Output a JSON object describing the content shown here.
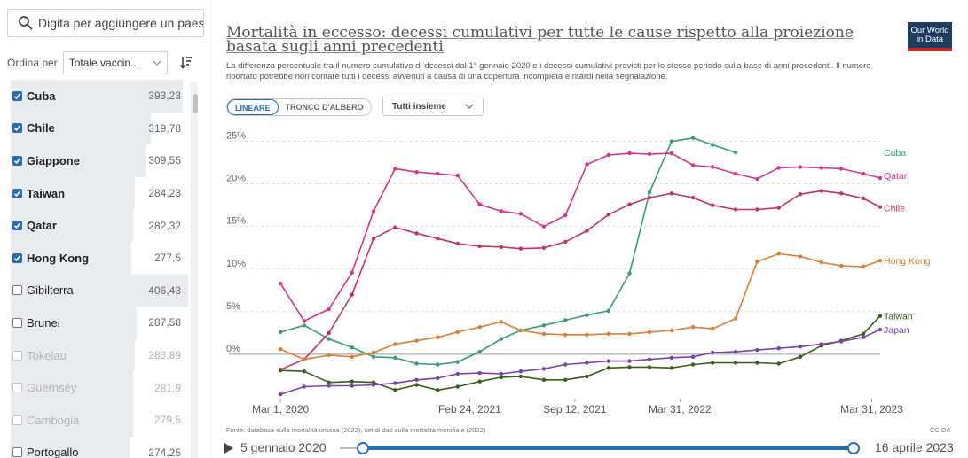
{
  "sidebar": {
    "search_placeholder": "Digita per aggiungere un paese",
    "sort_label": "Ordina per",
    "sort_value": "Totale vaccin...",
    "entities": [
      {
        "name": "Cuba",
        "value": "393,23",
        "checked": true,
        "muted": false,
        "fraction": 0.97
      },
      {
        "name": "Chile",
        "value": "319,78",
        "checked": true,
        "muted": false,
        "fraction": 0.79
      },
      {
        "name": "Giappone",
        "value": "309,55",
        "checked": true,
        "muted": false,
        "fraction": 0.76
      },
      {
        "name": "Taiwan",
        "value": "284,23",
        "checked": true,
        "muted": false,
        "fraction": 0.7
      },
      {
        "name": "Qatar",
        "value": "282,32",
        "checked": true,
        "muted": false,
        "fraction": 0.69
      },
      {
        "name": "Hong Kong",
        "value": "277,5",
        "checked": true,
        "muted": false,
        "fraction": 0.68
      },
      {
        "name": "Gibilterra",
        "value": "406,43",
        "checked": false,
        "muted": false,
        "fraction": 1.0
      },
      {
        "name": "Brunei",
        "value": "287,58",
        "checked": false,
        "muted": false,
        "fraction": 0.71
      },
      {
        "name": "Tokelau",
        "value": "283,89",
        "checked": false,
        "muted": true,
        "fraction": 0.7
      },
      {
        "name": "Guernsey",
        "value": "281,9",
        "checked": false,
        "muted": true,
        "fraction": 0.69
      },
      {
        "name": "Cambogia",
        "value": "279,5",
        "checked": false,
        "muted": true,
        "fraction": 0.69
      },
      {
        "name": "Portogallo",
        "value": "274,25",
        "checked": false,
        "muted": false,
        "fraction": 0.67
      }
    ]
  },
  "header": {
    "title": "Mortalità in eccesso: decessi cumulativi per tutte le cause rispetto alla proiezione basata sugli anni precedenti",
    "subtitle": "La differenza percentuale tra il numero cumulativo di decessi dal 1° gennaio 2020 e i decessi cumulativi previsti per lo stesso periodo sulla base di anni precedenti. Il numero riportato potrebbe non contare tutti i decessi avvenuti a causa di una copertura incompleta e ritardi nella segnalazione.",
    "logo_line1": "Our World",
    "logo_line2": "in Data"
  },
  "controls": {
    "scale_linear": "LINEARE",
    "scale_log": "TRONCO D'ALBERO",
    "group_label": "Tutti insieme"
  },
  "footer": {
    "sources": "Fonte: database sulla mortalità umana (2022), set di dati sulla mortalità mondiale (2022)",
    "license": "CC DA"
  },
  "timeline": {
    "start": "5 gennaio 2020",
    "end": "16 aprile 2023"
  },
  "colors": {
    "accent": "#2b6cb0",
    "Cuba": "#3a9c6e",
    "Qatar": "#d6338a",
    "Chile": "#c2306e",
    "Hong Kong": "#d87f36",
    "Taiwan": "#3a5c1c",
    "Japan": "#7c41a8"
  },
  "chart_data": {
    "type": "line",
    "title": "Mortalità in eccesso: decessi cumulativi per tutte le cause rispetto alla proiezione basata sugli anni precedenti",
    "xlabel": "",
    "ylabel": "",
    "x_ticks": [
      "Mar 1, 2020",
      "Feb 24, 2021",
      "Sep 12, 2021",
      "Mar 31, 2022",
      "Mar 31, 2023"
    ],
    "y_ticks": [
      "0%",
      "5%",
      "10%",
      "15%",
      "20%",
      "25%"
    ],
    "ylim": [
      -5,
      26
    ],
    "xlim": [
      "2020-01-05",
      "2023-04-16"
    ],
    "grid": true,
    "legend": "right-labels",
    "series": [
      {
        "name": "Cuba",
        "points": [
          [
            "2020-03-01",
            2.6
          ],
          [
            "2020-04-15",
            3.4
          ],
          [
            "2020-06-01",
            1.8
          ],
          [
            "2020-07-15",
            0.8
          ],
          [
            "2020-08-25",
            -0.3
          ],
          [
            "2020-10-05",
            -0.4
          ],
          [
            "2020-11-15",
            -1.1
          ],
          [
            "2020-12-25",
            -1.2
          ],
          [
            "2021-02-01",
            -0.9
          ],
          [
            "2021-03-15",
            0.3
          ],
          [
            "2021-04-25",
            1.8
          ],
          [
            "2021-06-01",
            2.8
          ],
          [
            "2021-07-15",
            3.4
          ],
          [
            "2021-08-25",
            4.0
          ],
          [
            "2021-10-05",
            4.6
          ],
          [
            "2021-11-15",
            5.1
          ],
          [
            "2021-12-25",
            9.5
          ],
          [
            "2022-02-01",
            19.0
          ],
          [
            "2022-03-15",
            25.0
          ],
          [
            "2022-04-25",
            25.4
          ],
          [
            "2022-06-01",
            24.6
          ],
          [
            "2022-07-15",
            23.7
          ]
        ]
      },
      {
        "name": "Qatar",
        "points": [
          [
            "2020-03-01",
            8.3
          ],
          [
            "2020-04-15",
            3.9
          ],
          [
            "2020-06-01",
            5.3
          ],
          [
            "2020-07-15",
            9.6
          ],
          [
            "2020-08-25",
            16.8
          ],
          [
            "2020-10-05",
            21.8
          ],
          [
            "2020-11-15",
            21.4
          ],
          [
            "2020-12-25",
            21.2
          ],
          [
            "2021-02-01",
            21.0
          ],
          [
            "2021-03-15",
            17.6
          ],
          [
            "2021-04-25",
            16.8
          ],
          [
            "2021-06-01",
            16.5
          ],
          [
            "2021-07-15",
            15.0
          ],
          [
            "2021-08-25",
            16.3
          ],
          [
            "2021-10-05",
            22.3
          ],
          [
            "2021-11-15",
            23.4
          ],
          [
            "2021-12-25",
            23.6
          ],
          [
            "2022-02-01",
            23.5
          ],
          [
            "2022-03-15",
            23.6
          ],
          [
            "2022-04-25",
            22.2
          ],
          [
            "2022-06-01",
            22.0
          ],
          [
            "2022-07-15",
            21.2
          ],
          [
            "2022-08-25",
            20.6
          ],
          [
            "2022-10-05",
            21.9
          ],
          [
            "2022-11-15",
            22.0
          ],
          [
            "2022-12-25",
            21.9
          ],
          [
            "2023-02-01",
            21.8
          ],
          [
            "2023-03-15",
            21.2
          ],
          [
            "2023-04-16",
            20.7
          ]
        ]
      },
      {
        "name": "Chile",
        "points": [
          [
            "2020-03-01",
            -1.8
          ],
          [
            "2020-04-15",
            -0.6
          ],
          [
            "2020-06-01",
            2.5
          ],
          [
            "2020-07-15",
            7.0
          ],
          [
            "2020-08-25",
            13.6
          ],
          [
            "2020-10-05",
            14.9
          ],
          [
            "2020-11-15",
            14.2
          ],
          [
            "2020-12-25",
            13.6
          ],
          [
            "2021-02-01",
            13.0
          ],
          [
            "2021-03-15",
            12.7
          ],
          [
            "2021-04-25",
            12.6
          ],
          [
            "2021-06-01",
            12.4
          ],
          [
            "2021-07-15",
            12.5
          ],
          [
            "2021-08-25",
            13.2
          ],
          [
            "2021-10-05",
            14.5
          ],
          [
            "2021-11-15",
            16.4
          ],
          [
            "2021-12-25",
            17.6
          ],
          [
            "2022-02-01",
            18.4
          ],
          [
            "2022-03-15",
            18.9
          ],
          [
            "2022-04-25",
            18.4
          ],
          [
            "2022-06-01",
            17.5
          ],
          [
            "2022-07-15",
            17.0
          ],
          [
            "2022-08-25",
            17.0
          ],
          [
            "2022-10-05",
            17.2
          ],
          [
            "2022-11-15",
            18.8
          ],
          [
            "2022-12-25",
            19.2
          ],
          [
            "2023-02-01",
            18.9
          ],
          [
            "2023-03-15",
            18.3
          ],
          [
            "2023-04-16",
            17.3
          ]
        ]
      },
      {
        "name": "Hong Kong",
        "points": [
          [
            "2020-03-01",
            0.6
          ],
          [
            "2020-04-15",
            -0.6
          ],
          [
            "2020-06-01",
            -0.1
          ],
          [
            "2020-07-15",
            -0.3
          ],
          [
            "2020-08-25",
            0.2
          ],
          [
            "2020-10-05",
            1.2
          ],
          [
            "2020-11-15",
            1.6
          ],
          [
            "2020-12-25",
            2.0
          ],
          [
            "2021-02-01",
            2.6
          ],
          [
            "2021-03-15",
            3.2
          ],
          [
            "2021-04-25",
            3.8
          ],
          [
            "2021-06-01",
            2.8
          ],
          [
            "2021-07-15",
            2.4
          ],
          [
            "2021-08-25",
            2.3
          ],
          [
            "2021-10-05",
            2.3
          ],
          [
            "2021-11-15",
            2.4
          ],
          [
            "2021-12-25",
            2.4
          ],
          [
            "2022-02-01",
            2.6
          ],
          [
            "2022-03-15",
            2.8
          ],
          [
            "2022-04-25",
            3.2
          ],
          [
            "2022-06-01",
            3.0
          ],
          [
            "2022-07-15",
            4.2
          ],
          [
            "2022-08-25",
            10.9
          ],
          [
            "2022-10-05",
            11.8
          ],
          [
            "2022-11-15",
            11.5
          ],
          [
            "2022-12-25",
            10.8
          ],
          [
            "2023-02-01",
            10.4
          ],
          [
            "2023-03-15",
            10.3
          ],
          [
            "2023-04-16",
            11.0
          ]
        ]
      },
      {
        "name": "Taiwan",
        "points": [
          [
            "2020-03-01",
            -1.9
          ],
          [
            "2020-04-15",
            -2.0
          ],
          [
            "2020-06-01",
            -3.3
          ],
          [
            "2020-07-15",
            -3.2
          ],
          [
            "2020-08-25",
            -3.3
          ],
          [
            "2020-10-05",
            -4.2
          ],
          [
            "2020-11-15",
            -3.6
          ],
          [
            "2020-12-25",
            -4.2
          ],
          [
            "2021-02-01",
            -3.8
          ],
          [
            "2021-03-15",
            -3.2
          ],
          [
            "2021-04-25",
            -2.7
          ],
          [
            "2021-06-01",
            -2.6
          ],
          [
            "2021-07-15",
            -3.0
          ],
          [
            "2021-08-25",
            -3.0
          ],
          [
            "2021-10-05",
            -2.6
          ],
          [
            "2021-11-15",
            -1.6
          ],
          [
            "2021-12-25",
            -1.5
          ],
          [
            "2022-02-01",
            -1.5
          ],
          [
            "2022-03-15",
            -1.6
          ],
          [
            "2022-04-25",
            -1.2
          ],
          [
            "2022-06-01",
            -1.0
          ],
          [
            "2022-07-15",
            -1.0
          ],
          [
            "2022-08-25",
            -1.0
          ],
          [
            "2022-10-05",
            -1.1
          ],
          [
            "2022-11-15",
            -0.3
          ],
          [
            "2022-12-25",
            1.0
          ],
          [
            "2023-02-01",
            1.6
          ],
          [
            "2023-03-15",
            2.4
          ],
          [
            "2023-04-16",
            4.5
          ]
        ]
      },
      {
        "name": "Japan",
        "points": [
          [
            "2020-03-01",
            -4.7
          ],
          [
            "2020-04-15",
            -3.8
          ],
          [
            "2020-06-01",
            -3.7
          ],
          [
            "2020-07-15",
            -3.7
          ],
          [
            "2020-08-25",
            -3.6
          ],
          [
            "2020-10-05",
            -3.4
          ],
          [
            "2020-11-15",
            -3.0
          ],
          [
            "2020-12-25",
            -2.8
          ],
          [
            "2021-02-01",
            -2.3
          ],
          [
            "2021-03-15",
            -2.2
          ],
          [
            "2021-04-25",
            -2.3
          ],
          [
            "2021-06-01",
            -2.0
          ],
          [
            "2021-07-15",
            -1.7
          ],
          [
            "2021-08-25",
            -1.2
          ],
          [
            "2021-10-05",
            -1.0
          ],
          [
            "2021-11-15",
            -0.8
          ],
          [
            "2021-12-25",
            -0.8
          ],
          [
            "2022-02-01",
            -0.6
          ],
          [
            "2022-03-15",
            -0.4
          ],
          [
            "2022-04-25",
            -0.3
          ],
          [
            "2022-06-01",
            0.2
          ],
          [
            "2022-07-15",
            0.3
          ],
          [
            "2022-08-25",
            0.5
          ],
          [
            "2022-10-05",
            0.7
          ],
          [
            "2022-11-15",
            0.9
          ],
          [
            "2022-12-25",
            1.2
          ],
          [
            "2023-02-01",
            1.5
          ],
          [
            "2023-03-15",
            2.0
          ],
          [
            "2023-04-16",
            2.9
          ]
        ]
      }
    ],
    "end_labels": [
      {
        "name": "Cuba",
        "y": 23.7
      },
      {
        "name": "Qatar",
        "y": 21.0
      },
      {
        "name": "Chile",
        "y": 17.2
      },
      {
        "name": "Hong Kong",
        "y": 11.0
      },
      {
        "name": "Taiwan",
        "y": 4.5
      },
      {
        "name": "Japan",
        "y": 2.9
      }
    ]
  }
}
